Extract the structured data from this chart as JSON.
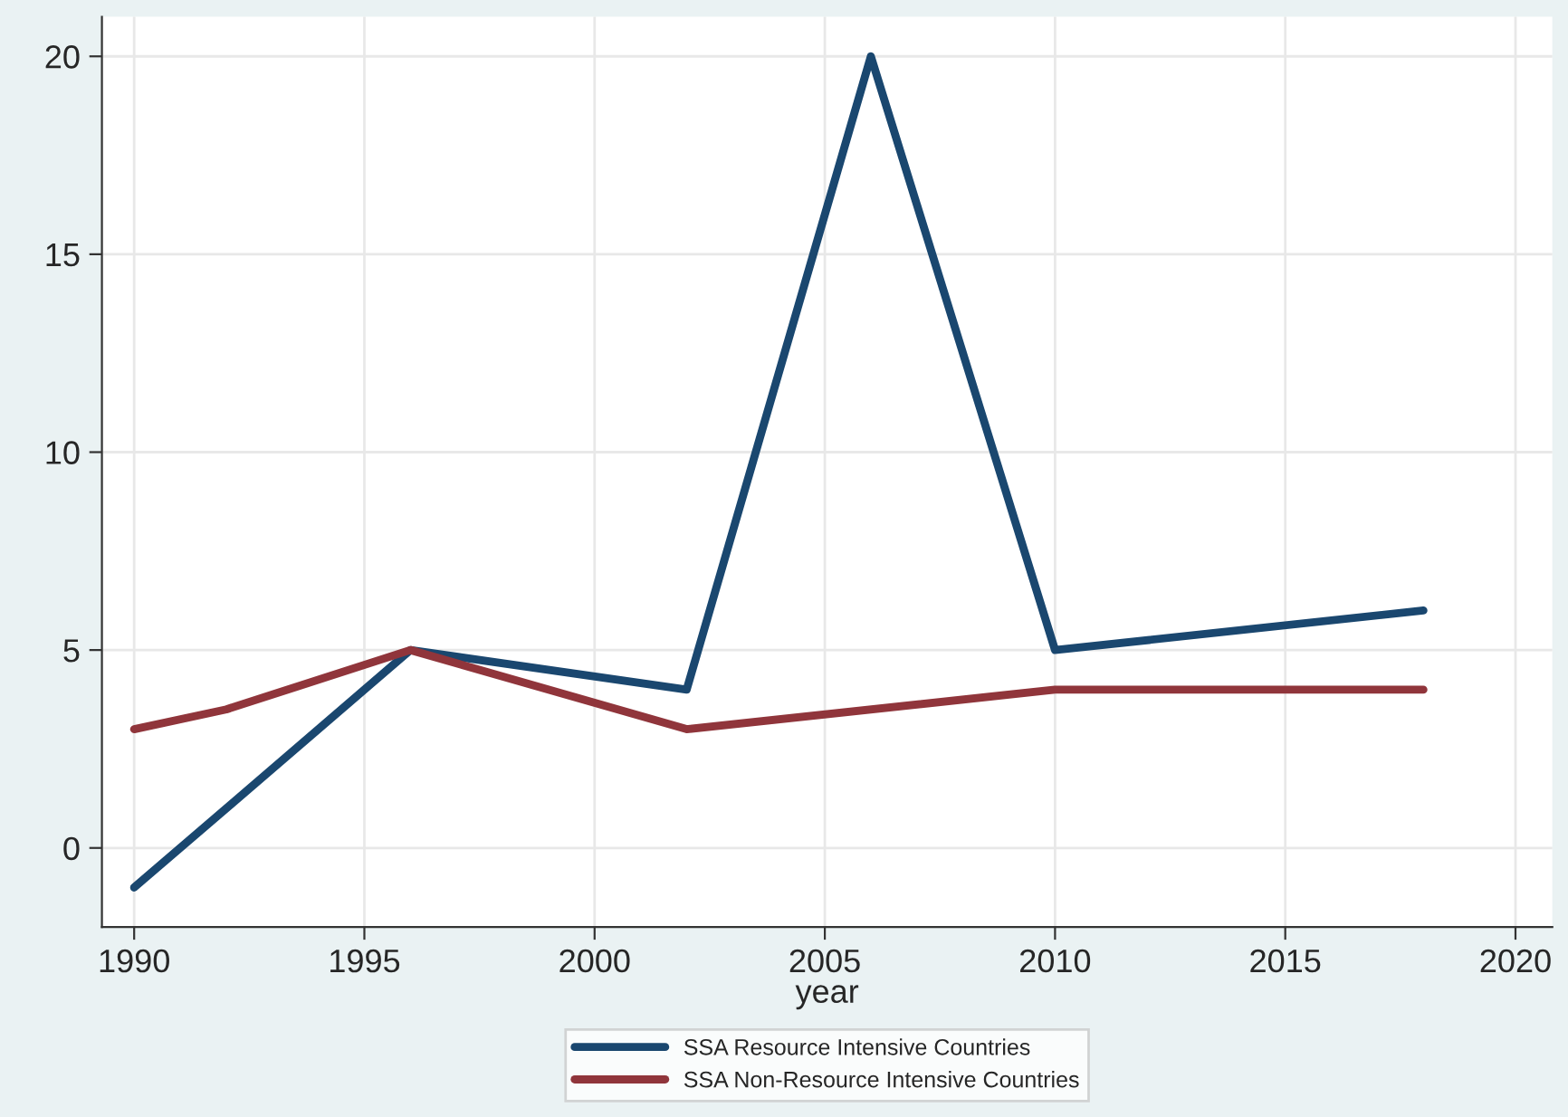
{
  "chart_data": {
    "type": "line",
    "xlabel": "year",
    "series": [
      {
        "name": "SSA Resource Intensive Countries",
        "color": "#1a476f",
        "x": [
          1990,
          1996,
          2002,
          2006,
          2010,
          2018
        ],
        "values": [
          -1,
          5,
          4,
          20,
          5,
          6
        ]
      },
      {
        "name": "SSA Non-Resource Intensive Countries",
        "color": "#90353b",
        "x": [
          1990,
          1992,
          1996,
          2002,
          2010,
          2018
        ],
        "values": [
          3,
          3.5,
          5,
          3,
          4,
          4
        ]
      }
    ],
    "xlim": [
      1989.3,
      2020.8
    ],
    "xticks": [
      1990,
      1995,
      2000,
      2005,
      2010,
      2015,
      2020
    ],
    "ylim": [
      -2,
      21
    ],
    "yticks": [
      0,
      5,
      10,
      15,
      20
    ],
    "grid": true,
    "legend": "bottom",
    "marker": "none",
    "line_style": "solid"
  }
}
